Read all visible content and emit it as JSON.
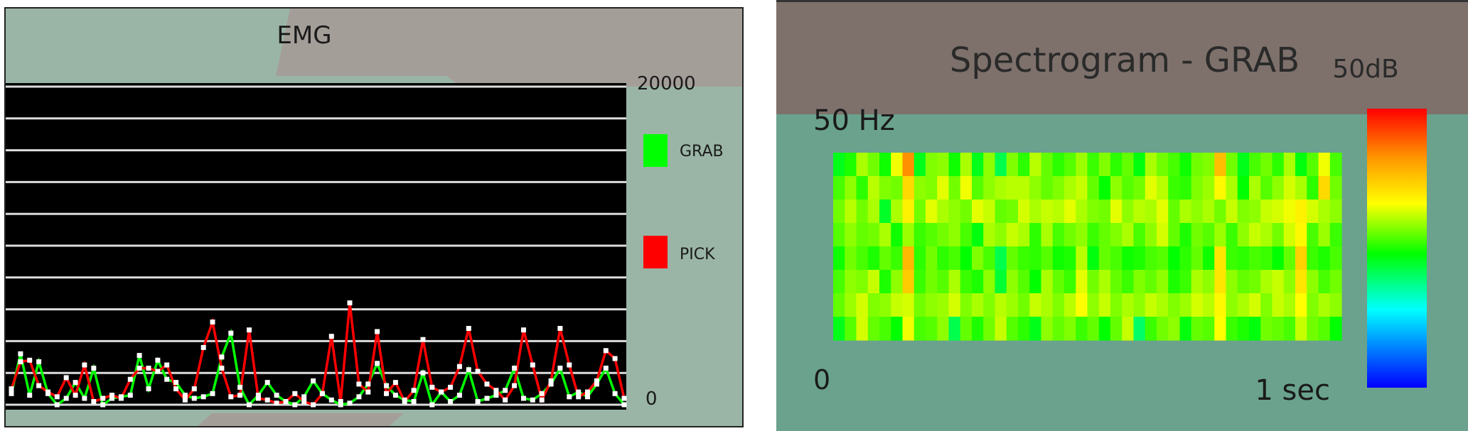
{
  "colors": {
    "grab": "#00ff00",
    "pick": "#ff0000",
    "panel_teal": "#9ab5a6",
    "panel_gray": "#a49e99",
    "spec_bg": "#6aa28d",
    "spec_header": "#7e716b"
  },
  "chart_data": [
    {
      "type": "line",
      "title": "EMG",
      "ylim": [
        0,
        20000
      ],
      "y_ticks": [
        "20000",
        "0"
      ],
      "grid": true,
      "legend": "right",
      "series": [
        {
          "name": "GRAB",
          "color": "#00ff00",
          "values": [
            700,
            3200,
            600,
            2700,
            700,
            0,
            400,
            1400,
            400,
            2300,
            0,
            400,
            500,
            600,
            3100,
            1000,
            2800,
            1600,
            1400,
            600,
            400,
            500,
            700,
            3000,
            4500,
            1100,
            0,
            600,
            1400,
            600,
            200,
            0,
            500,
            1500,
            700,
            300,
            0,
            100,
            500,
            1300,
            2600,
            1200,
            600,
            300,
            200,
            2000,
            0,
            800,
            200,
            600,
            2200,
            200,
            400,
            600,
            900,
            2300,
            400,
            300,
            700,
            1300,
            2300,
            500,
            800,
            500,
            1300,
            2300,
            700,
            0
          ]
        },
        {
          "name": "PICK",
          "color": "#ff0000",
          "values": [
            1000,
            2700,
            2800,
            1200,
            800,
            500,
            1700,
            600,
            2500,
            200,
            400,
            600,
            400,
            1600,
            2300,
            2300,
            2100,
            2500,
            1000,
            300,
            1000,
            3600,
            5200,
            2300,
            500,
            600,
            4700,
            400,
            300,
            100,
            200,
            700,
            200,
            0,
            700,
            4300,
            200,
            6400,
            1300,
            800,
            4600,
            700,
            1400,
            200,
            900,
            4100,
            1100,
            800,
            1100,
            2400,
            4800,
            2100,
            1300,
            900,
            300,
            1200,
            4700,
            2500,
            300,
            1500,
            4800,
            2500,
            500,
            800,
            1500,
            3400,
            2900,
            400
          ]
        }
      ]
    },
    {
      "type": "heatmap",
      "title": "Spectrogram - GRAB",
      "y_top_label": "50 Hz",
      "x_start_label": "0",
      "x_end_label": "1 sec",
      "colorbar_max_label": "50dB",
      "rows": 8,
      "cols": 44,
      "colorbar": "right",
      "values": [
        [
          0.46,
          0.5,
          0.6,
          0.56,
          0.49,
          0.65,
          0.83,
          0.46,
          0.57,
          0.58,
          0.49,
          0.6,
          0.46,
          0.58,
          0.42,
          0.57,
          0.51,
          0.61,
          0.55,
          0.51,
          0.54,
          0.59,
          0.52,
          0.57,
          0.51,
          0.55,
          0.47,
          0.6,
          0.56,
          0.53,
          0.49,
          0.56,
          0.57,
          0.76,
          0.56,
          0.46,
          0.53,
          0.56,
          0.51,
          0.6,
          0.47,
          0.54,
          0.65,
          0.53
        ],
        [
          0.53,
          0.58,
          0.51,
          0.61,
          0.57,
          0.56,
          0.72,
          0.58,
          0.57,
          0.64,
          0.56,
          0.65,
          0.54,
          0.58,
          0.6,
          0.61,
          0.61,
          0.58,
          0.55,
          0.57,
          0.6,
          0.62,
          0.55,
          0.48,
          0.58,
          0.54,
          0.56,
          0.64,
          0.61,
          0.52,
          0.51,
          0.57,
          0.59,
          0.67,
          0.6,
          0.48,
          0.6,
          0.54,
          0.58,
          0.63,
          0.6,
          0.51,
          0.72,
          0.56
        ],
        [
          0.56,
          0.61,
          0.56,
          0.6,
          0.45,
          0.6,
          0.68,
          0.56,
          0.64,
          0.6,
          0.58,
          0.56,
          0.64,
          0.62,
          0.55,
          0.56,
          0.63,
          0.6,
          0.62,
          0.61,
          0.64,
          0.6,
          0.57,
          0.56,
          0.64,
          0.58,
          0.61,
          0.6,
          0.64,
          0.55,
          0.6,
          0.58,
          0.6,
          0.56,
          0.62,
          0.57,
          0.58,
          0.62,
          0.63,
          0.65,
          0.68,
          0.63,
          0.6,
          0.58
        ],
        [
          0.54,
          0.58,
          0.55,
          0.56,
          0.6,
          0.49,
          0.59,
          0.52,
          0.54,
          0.56,
          0.58,
          0.53,
          0.47,
          0.6,
          0.58,
          0.62,
          0.6,
          0.51,
          0.6,
          0.53,
          0.56,
          0.58,
          0.52,
          0.55,
          0.57,
          0.6,
          0.53,
          0.58,
          0.63,
          0.55,
          0.5,
          0.56,
          0.54,
          0.59,
          0.52,
          0.58,
          0.62,
          0.6,
          0.56,
          0.63,
          0.67,
          0.53,
          0.59,
          0.52
        ],
        [
          0.49,
          0.56,
          0.53,
          0.5,
          0.55,
          0.52,
          0.77,
          0.51,
          0.56,
          0.51,
          0.53,
          0.48,
          0.57,
          0.53,
          0.42,
          0.55,
          0.52,
          0.51,
          0.54,
          0.49,
          0.5,
          0.61,
          0.47,
          0.55,
          0.53,
          0.49,
          0.5,
          0.53,
          0.54,
          0.48,
          0.51,
          0.55,
          0.49,
          0.7,
          0.52,
          0.51,
          0.53,
          0.52,
          0.48,
          0.55,
          0.73,
          0.52,
          0.5,
          0.53
        ],
        [
          0.53,
          0.58,
          0.57,
          0.62,
          0.5,
          0.58,
          0.74,
          0.52,
          0.56,
          0.54,
          0.6,
          0.52,
          0.5,
          0.58,
          0.44,
          0.58,
          0.54,
          0.48,
          0.6,
          0.55,
          0.52,
          0.64,
          0.56,
          0.6,
          0.55,
          0.52,
          0.57,
          0.55,
          0.58,
          0.5,
          0.52,
          0.6,
          0.58,
          0.7,
          0.58,
          0.55,
          0.56,
          0.6,
          0.62,
          0.58,
          0.7,
          0.58,
          0.53,
          0.56
        ],
        [
          0.55,
          0.59,
          0.63,
          0.57,
          0.58,
          0.62,
          0.63,
          0.56,
          0.58,
          0.59,
          0.63,
          0.57,
          0.6,
          0.57,
          0.61,
          0.59,
          0.56,
          0.62,
          0.6,
          0.57,
          0.61,
          0.66,
          0.58,
          0.62,
          0.57,
          0.6,
          0.58,
          0.62,
          0.6,
          0.57,
          0.59,
          0.63,
          0.61,
          0.67,
          0.58,
          0.6,
          0.63,
          0.57,
          0.62,
          0.6,
          0.66,
          0.57,
          0.6,
          0.58
        ],
        [
          0.46,
          0.54,
          0.63,
          0.55,
          0.53,
          0.48,
          0.65,
          0.53,
          0.54,
          0.58,
          0.42,
          0.55,
          0.5,
          0.56,
          0.62,
          0.54,
          0.51,
          0.46,
          0.58,
          0.55,
          0.57,
          0.52,
          0.55,
          0.48,
          0.55,
          0.62,
          0.4,
          0.52,
          0.56,
          0.58,
          0.47,
          0.55,
          0.54,
          0.66,
          0.52,
          0.5,
          0.47,
          0.56,
          0.55,
          0.53,
          0.62,
          0.56,
          0.54,
          0.48
        ]
      ]
    }
  ]
}
